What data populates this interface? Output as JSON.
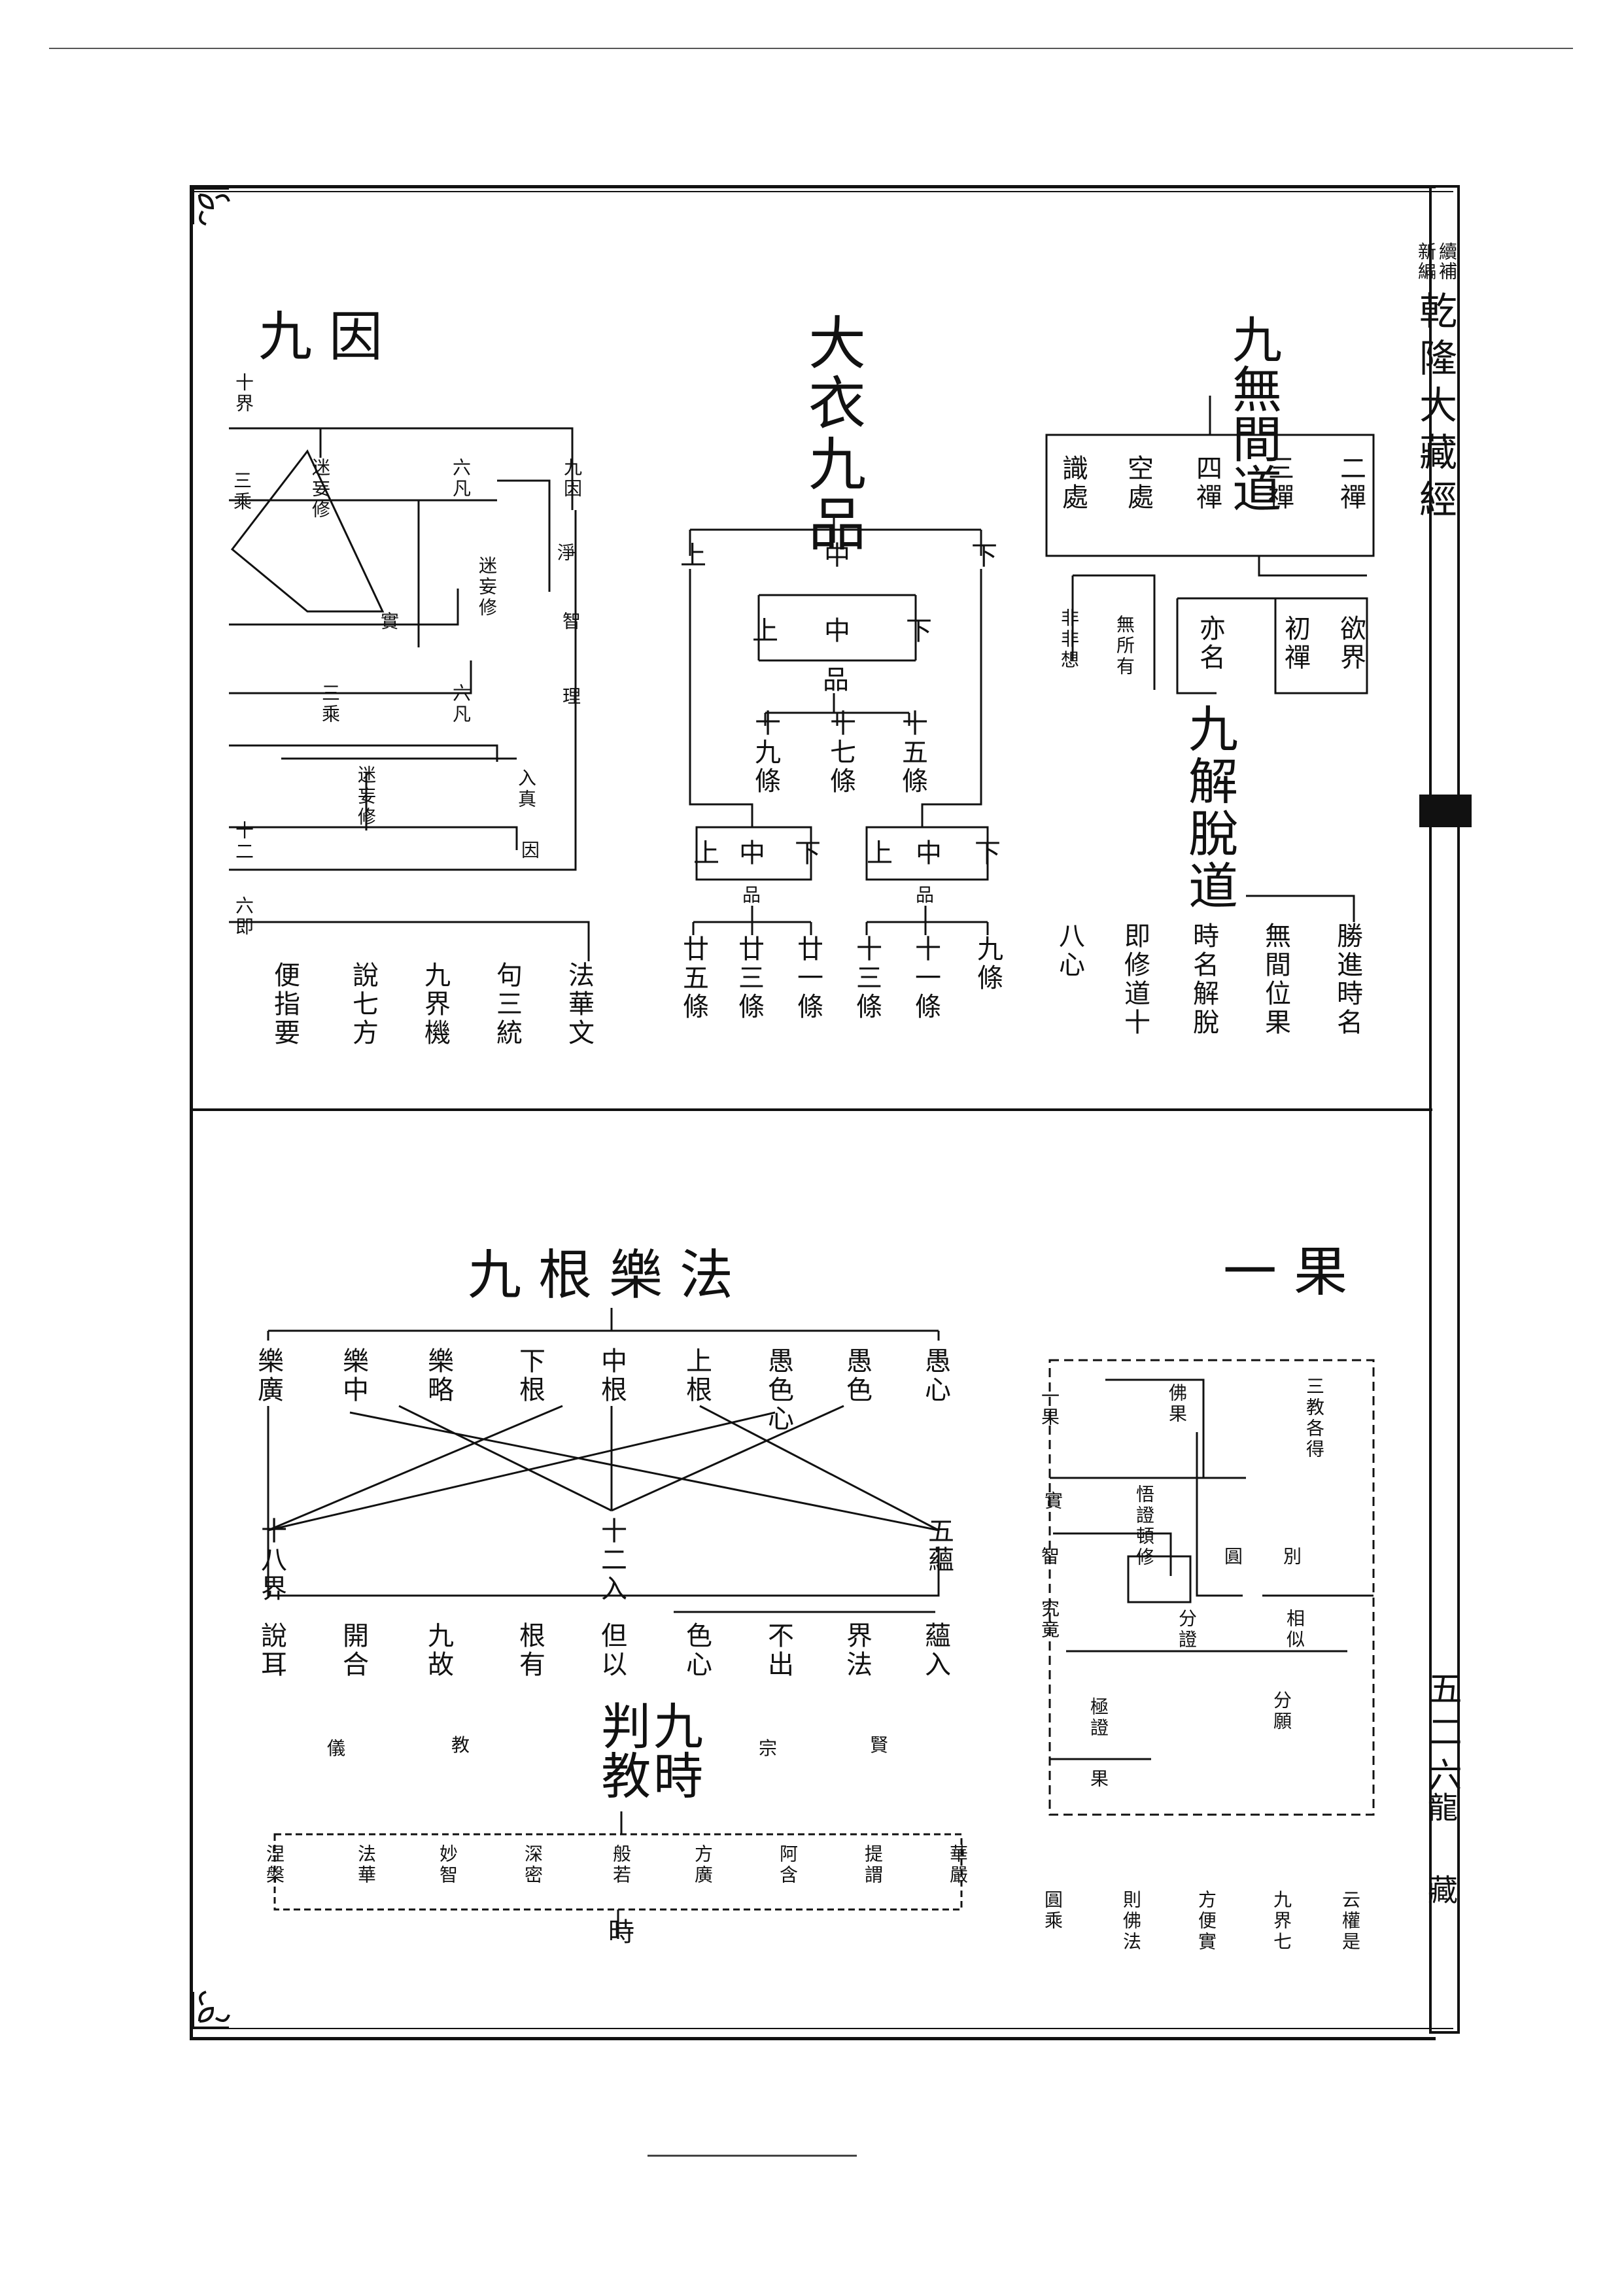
{
  "sidebar": {
    "small_top_right": "續補",
    "small_top_left": "新編",
    "title": "乾隆大藏經",
    "page_number": "五二六",
    "imprint": "龍藏"
  },
  "top_left": {
    "title": "九因",
    "top_label": "十界",
    "label_jiuyin": "九因",
    "label_liufan": "六凡",
    "label_sansheng": "三乘",
    "label_zhi": "智",
    "label_shi": "實",
    "label_xuqing": "淨",
    "label_li": "理",
    "label_yin": "因",
    "label_mixiu": "迷妄修",
    "label_ruqi": "入真",
    "label_shier": "十二",
    "label_liuji": "六即",
    "bottom_labels": [
      "法華文",
      "句三統",
      "九界機",
      "說七方",
      "便指要"
    ]
  },
  "top_mid": {
    "title": "大衣九品",
    "top_row": [
      "上",
      "中",
      "下"
    ],
    "mid_row": [
      "上",
      "中",
      "下"
    ],
    "pin": "品",
    "tiao_row": [
      "十九條",
      "十七條",
      "十五條"
    ],
    "low_left": [
      "上",
      "中",
      "下"
    ],
    "low_right": [
      "上",
      "中",
      "下"
    ],
    "pin_left": "品",
    "pin_right": "品",
    "bottom_left": [
      "廿五條",
      "廿三條",
      "廿一條"
    ],
    "bottom_right": [
      "十三條",
      "十一條",
      "九條"
    ]
  },
  "top_right": {
    "title": "九無間道",
    "boxes": [
      "二禪",
      "三禪",
      "四禪",
      "空處",
      "識處"
    ],
    "under": [
      "欲界",
      "初禪"
    ],
    "under_left": [
      "無所有",
      "非非想"
    ],
    "yiming": "亦名",
    "subtitle": "九解脫道",
    "bottom": [
      "勝進時名",
      "無間位果",
      "時名解脫",
      "即修道十",
      "八心"
    ]
  },
  "bottom_left": {
    "title": "九根樂法",
    "top_row": [
      "愚心",
      "愚色",
      "愚色心",
      "上根",
      "中根",
      "下根",
      "樂略",
      "樂中",
      "樂廣"
    ],
    "mid_row": [
      "五蘊",
      "十二入",
      "十八界"
    ],
    "bottom_row": [
      "蘊入",
      "界法",
      "不出",
      "色心",
      "但以",
      "根有",
      "九故",
      "開合",
      "說耳"
    ]
  },
  "bottom_mid": {
    "title": "九時判教",
    "left_words": [
      "儀",
      "教"
    ],
    "right_words": [
      "宗",
      "賢"
    ],
    "top_row": [
      "華嚴",
      "提謂",
      "阿含",
      "方廣",
      "般若",
      "深密",
      "妙智",
      "法華",
      "涅槃"
    ],
    "shi": "時"
  },
  "bottom_right": {
    "title": "一果",
    "labels_left": [
      "一果",
      "實",
      "智",
      "究竟"
    ],
    "labels_mid": [
      "佛果",
      "悟證頓修",
      "圓",
      "分證",
      "極證",
      "果"
    ],
    "labels_right": [
      "三教各得",
      "別",
      "相似",
      "分願"
    ],
    "bottom": [
      "云權是",
      "九界七",
      "方便實",
      "則佛法",
      "圓乘"
    ]
  }
}
